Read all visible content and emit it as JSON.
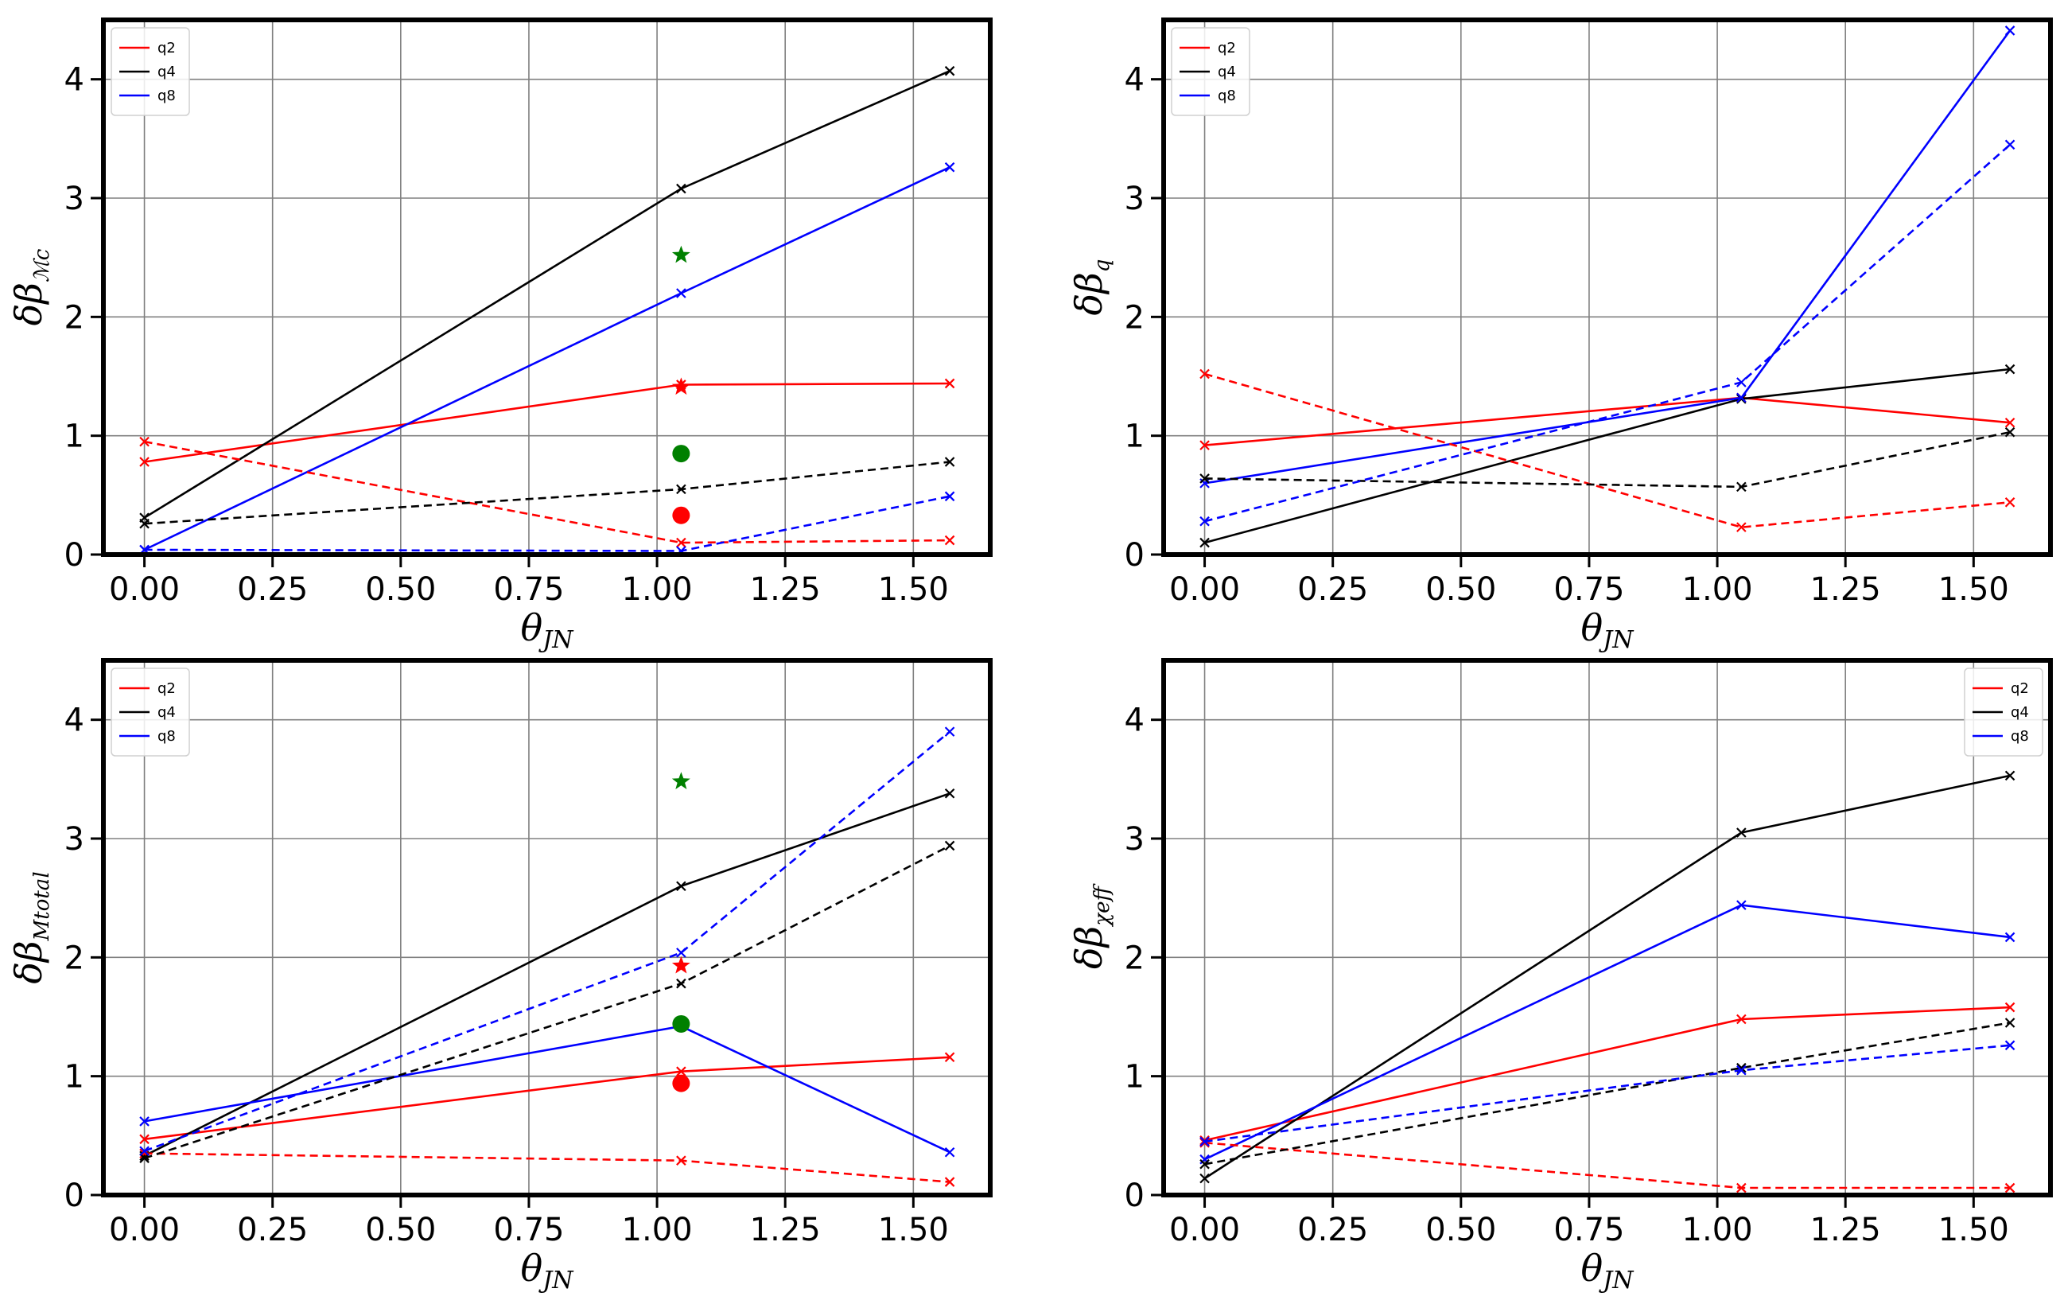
{
  "chart_data": [
    {
      "type": "line",
      "ylabel": "δβ_Mc",
      "ylabel_main": "δβ",
      "ylabel_sub": "ℳc",
      "xlabel": "θ_JN",
      "xlabel_main": "θ",
      "xlabel_sub": "JN",
      "xlim": [
        -0.08,
        1.65
      ],
      "ylim": [
        0,
        4.5
      ],
      "xticks": [
        "0.00",
        "0.25",
        "0.50",
        "0.75",
        "1.00",
        "1.25",
        "1.50"
      ],
      "xtick_values": [
        0,
        0.25,
        0.5,
        0.75,
        1.0,
        1.25,
        1.5
      ],
      "yticks": [
        "0",
        "1",
        "2",
        "3",
        "4"
      ],
      "ytick_values": [
        0,
        1,
        2,
        3,
        4
      ],
      "grid": true,
      "legend_position": "upper-left",
      "legend": [
        "q2",
        "q4",
        "q8"
      ],
      "x": [
        0,
        1.047,
        1.571
      ],
      "series": [
        {
          "name": "q2",
          "color": "#ff0000",
          "dash": false,
          "values": [
            0.78,
            1.43,
            1.44
          ]
        },
        {
          "name": "q4",
          "color": "#000000",
          "dash": false,
          "values": [
            0.31,
            3.08,
            4.07
          ]
        },
        {
          "name": "q8",
          "color": "#0000ff",
          "dash": false,
          "values": [
            0.04,
            2.2,
            3.26
          ]
        },
        {
          "name": "q2",
          "color": "#ff0000",
          "dash": true,
          "values": [
            0.95,
            0.1,
            0.12
          ]
        },
        {
          "name": "q4",
          "color": "#000000",
          "dash": true,
          "values": [
            0.26,
            0.55,
            0.78
          ]
        },
        {
          "name": "q8",
          "color": "#0000ff",
          "dash": true,
          "values": [
            0.04,
            0.03,
            0.49
          ]
        }
      ],
      "markers": [
        {
          "shape": "star",
          "color": "#008000",
          "x": 1.047,
          "y": 2.52
        },
        {
          "shape": "star",
          "color": "#ff0000",
          "x": 1.047,
          "y": 1.41
        },
        {
          "shape": "circle",
          "color": "#008000",
          "x": 1.047,
          "y": 0.85
        },
        {
          "shape": "circle",
          "color": "#ff0000",
          "x": 1.047,
          "y": 0.33
        }
      ]
    },
    {
      "type": "line",
      "ylabel": "δβ_q",
      "ylabel_main": "δβ",
      "ylabel_sub": "q",
      "xlabel": "θ_JN",
      "xlabel_main": "θ",
      "xlabel_sub": "JN",
      "xlim": [
        -0.08,
        1.65
      ],
      "ylim": [
        0,
        4.5
      ],
      "xticks": [
        "0.00",
        "0.25",
        "0.50",
        "0.75",
        "1.00",
        "1.25",
        "1.50"
      ],
      "xtick_values": [
        0,
        0.25,
        0.5,
        0.75,
        1.0,
        1.25,
        1.5
      ],
      "yticks": [
        "0",
        "1",
        "2",
        "3",
        "4"
      ],
      "ytick_values": [
        0,
        1,
        2,
        3,
        4
      ],
      "grid": true,
      "legend_position": "upper-left",
      "legend": [
        "q2",
        "q4",
        "q8"
      ],
      "x": [
        0,
        1.047,
        1.571
      ],
      "series": [
        {
          "name": "q2",
          "color": "#ff0000",
          "dash": false,
          "values": [
            0.92,
            1.32,
            1.11
          ]
        },
        {
          "name": "q4",
          "color": "#000000",
          "dash": false,
          "values": [
            0.1,
            1.31,
            1.56
          ]
        },
        {
          "name": "q8",
          "color": "#0000ff",
          "dash": false,
          "values": [
            0.6,
            1.32,
            4.41
          ]
        },
        {
          "name": "q2",
          "color": "#ff0000",
          "dash": true,
          "values": [
            1.52,
            0.23,
            0.44
          ]
        },
        {
          "name": "q4",
          "color": "#000000",
          "dash": true,
          "values": [
            0.64,
            0.57,
            1.03
          ]
        },
        {
          "name": "q8",
          "color": "#0000ff",
          "dash": true,
          "values": [
            0.28,
            1.45,
            3.45
          ]
        }
      ],
      "markers": []
    },
    {
      "type": "line",
      "ylabel": "δβ_Mtotal",
      "ylabel_main": "δβ",
      "ylabel_sub": "Mtotal",
      "xlabel": "θ_JN",
      "xlabel_main": "θ",
      "xlabel_sub": "JN",
      "xlim": [
        -0.08,
        1.65
      ],
      "ylim": [
        0,
        4.5
      ],
      "xticks": [
        "0.00",
        "0.25",
        "0.50",
        "0.75",
        "1.00",
        "1.25",
        "1.50"
      ],
      "xtick_values": [
        0,
        0.25,
        0.5,
        0.75,
        1.0,
        1.25,
        1.5
      ],
      "yticks": [
        "0",
        "1",
        "2",
        "3",
        "4"
      ],
      "ytick_values": [
        0,
        1,
        2,
        3,
        4
      ],
      "grid": true,
      "legend_position": "upper-left",
      "legend": [
        "q2",
        "q4",
        "q8"
      ],
      "x": [
        0,
        1.047,
        1.571
      ],
      "series": [
        {
          "name": "q2",
          "color": "#ff0000",
          "dash": false,
          "values": [
            0.47,
            1.04,
            1.16
          ]
        },
        {
          "name": "q4",
          "color": "#000000",
          "dash": false,
          "values": [
            0.33,
            2.6,
            3.38
          ]
        },
        {
          "name": "q8",
          "color": "#0000ff",
          "dash": false,
          "values": [
            0.62,
            1.42,
            0.36
          ]
        },
        {
          "name": "q2",
          "color": "#ff0000",
          "dash": true,
          "values": [
            0.35,
            0.29,
            0.11
          ]
        },
        {
          "name": "q4",
          "color": "#000000",
          "dash": true,
          "values": [
            0.31,
            1.78,
            2.94
          ]
        },
        {
          "name": "q8",
          "color": "#0000ff",
          "dash": true,
          "values": [
            0.37,
            2.04,
            3.9
          ]
        }
      ],
      "markers": [
        {
          "shape": "star",
          "color": "#008000",
          "x": 1.047,
          "y": 3.48
        },
        {
          "shape": "star",
          "color": "#ff0000",
          "x": 1.047,
          "y": 1.93
        },
        {
          "shape": "circle",
          "color": "#008000",
          "x": 1.047,
          "y": 1.44
        },
        {
          "shape": "circle",
          "color": "#ff0000",
          "x": 1.047,
          "y": 0.94
        }
      ]
    },
    {
      "type": "line",
      "ylabel": "δβ_χeff",
      "ylabel_main": "δβ",
      "ylabel_sub": "χeff",
      "xlabel": "θ_JN",
      "xlabel_main": "θ",
      "xlabel_sub": "JN",
      "xlim": [
        -0.08,
        1.65
      ],
      "ylim": [
        0,
        4.5
      ],
      "xticks": [
        "0.00",
        "0.25",
        "0.50",
        "0.75",
        "1.00",
        "1.25",
        "1.50"
      ],
      "xtick_values": [
        0,
        0.25,
        0.5,
        0.75,
        1.0,
        1.25,
        1.5
      ],
      "yticks": [
        "0",
        "1",
        "2",
        "3",
        "4"
      ],
      "ytick_values": [
        0,
        1,
        2,
        3,
        4
      ],
      "grid": true,
      "legend_position": "upper-right",
      "legend": [
        "q2",
        "q4",
        "q8"
      ],
      "x": [
        0,
        1.047,
        1.571
      ],
      "series": [
        {
          "name": "q2",
          "color": "#ff0000",
          "dash": false,
          "values": [
            0.46,
            1.48,
            1.58
          ]
        },
        {
          "name": "q4",
          "color": "#000000",
          "dash": false,
          "values": [
            0.14,
            3.05,
            3.53
          ]
        },
        {
          "name": "q8",
          "color": "#0000ff",
          "dash": false,
          "values": [
            0.3,
            2.44,
            2.17
          ]
        },
        {
          "name": "q2",
          "color": "#ff0000",
          "dash": true,
          "values": [
            0.44,
            0.06,
            0.06
          ]
        },
        {
          "name": "q4",
          "color": "#000000",
          "dash": true,
          "values": [
            0.26,
            1.07,
            1.45
          ]
        },
        {
          "name": "q8",
          "color": "#0000ff",
          "dash": true,
          "values": [
            0.45,
            1.05,
            1.26
          ]
        }
      ],
      "markers": []
    }
  ]
}
